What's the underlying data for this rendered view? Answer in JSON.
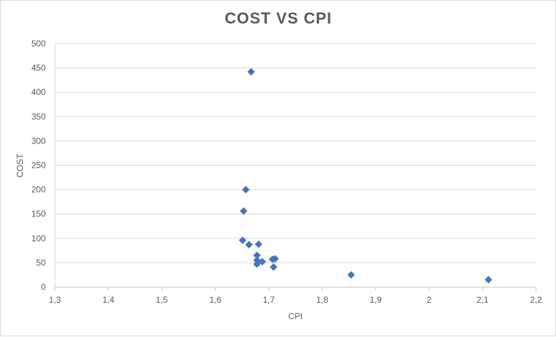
{
  "chart_data": {
    "type": "scatter",
    "title": "COST VS CPI",
    "xlabel": "CPI",
    "ylabel": "COST",
    "xlim": [
      1.3,
      2.2
    ],
    "ylim": [
      0,
      500
    ],
    "x_ticks": [
      1.3,
      1.4,
      1.5,
      1.6,
      1.7,
      1.8,
      1.9,
      2.0,
      2.1,
      2.2
    ],
    "x_tick_labels": [
      "1,3",
      "1,4",
      "1,5",
      "1,6",
      "1,7",
      "1,8",
      "1,9",
      "2",
      "2,1",
      "2,2"
    ],
    "y_ticks": [
      0,
      50,
      100,
      150,
      200,
      250,
      300,
      350,
      400,
      450,
      500
    ],
    "y_tick_labels": [
      "0",
      "50",
      "100",
      "150",
      "200",
      "250",
      "300",
      "350",
      "400",
      "450",
      "500"
    ],
    "grid": "horizontal",
    "legend": "none",
    "marker": "diamond",
    "color": "#4472c4",
    "series": [
      {
        "points": [
          {
            "x": 1.667,
            "y": 442
          },
          {
            "x": 1.657,
            "y": 200
          },
          {
            "x": 1.653,
            "y": 156
          },
          {
            "x": 1.651,
            "y": 96
          },
          {
            "x": 1.663,
            "y": 87
          },
          {
            "x": 1.681,
            "y": 88
          },
          {
            "x": 1.678,
            "y": 65
          },
          {
            "x": 1.678,
            "y": 55
          },
          {
            "x": 1.678,
            "y": 47
          },
          {
            "x": 1.688,
            "y": 52
          },
          {
            "x": 1.707,
            "y": 57
          },
          {
            "x": 1.712,
            "y": 58
          },
          {
            "x": 1.709,
            "y": 41
          },
          {
            "x": 1.854,
            "y": 25
          },
          {
            "x": 2.111,
            "y": 15
          }
        ]
      }
    ]
  }
}
